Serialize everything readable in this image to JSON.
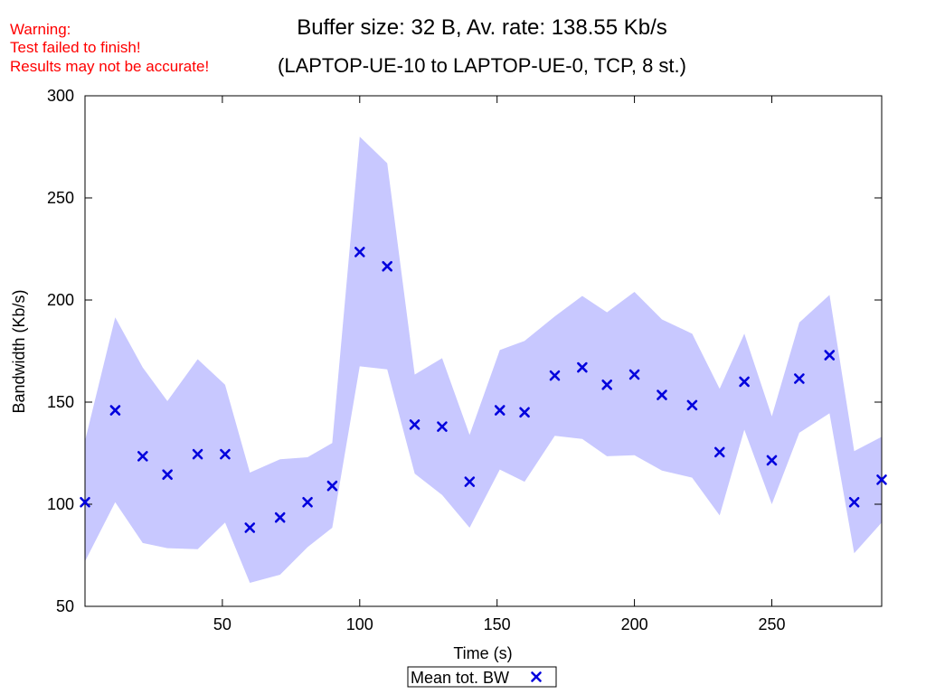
{
  "warning": {
    "lines": [
      "Warning:",
      "Test failed to finish!",
      "Results may not be accurate!"
    ],
    "color": "#ff0000"
  },
  "chart_data": {
    "type": "scatter",
    "title": "Buffer size: 32 B, Av. rate: 138.55 Kb/s",
    "subtitle": "(LAPTOP-UE-10 to LAPTOP-UE-0, TCP, 8 st.)",
    "xlabel": "Time (s)",
    "ylabel": "Bandwidth (Kb/s)",
    "xlim": [
      0,
      290
    ],
    "ylim": [
      50,
      300
    ],
    "xticks": [
      50,
      100,
      150,
      200,
      250
    ],
    "yticks": [
      50,
      100,
      150,
      200,
      250,
      300
    ],
    "grid": false,
    "legend_position": "bottom-center",
    "colors": {
      "points": "#0000dd",
      "band": "#c8c8ff"
    },
    "series": [
      {
        "name": "Mean tot. BW",
        "x": [
          0,
          11,
          21,
          30,
          41,
          51,
          60,
          71,
          81,
          90,
          100,
          110,
          120,
          130,
          140,
          151,
          160,
          171,
          181,
          190,
          200,
          210,
          221,
          231,
          240,
          250,
          260,
          271,
          280,
          290
        ],
        "y": [
          101,
          146,
          123.5,
          114.5,
          124.5,
          124.5,
          88.5,
          93.5,
          101,
          109,
          223.5,
          216.5,
          139,
          138,
          111,
          146,
          145,
          163,
          167,
          158.5,
          163.5,
          153.5,
          148.5,
          125.5,
          160,
          121.5,
          161.5,
          173,
          101,
          112
        ],
        "lower": [
          72,
          101,
          81,
          78.5,
          78,
          91,
          61.5,
          65.5,
          79,
          88.5,
          167.5,
          166,
          115,
          104.5,
          88.5,
          117,
          111,
          133.5,
          132,
          123.5,
          124,
          116.5,
          113,
          94.5,
          136.5,
          100,
          135,
          144.5,
          76,
          91
        ],
        "upper": [
          131,
          191.5,
          167,
          150.5,
          171,
          158.5,
          115.5,
          122,
          123,
          130,
          280,
          267,
          163.5,
          171.5,
          134,
          175.5,
          180,
          192,
          202,
          194,
          204,
          190.5,
          183.5,
          156.5,
          183.5,
          143,
          189,
          202.5,
          126,
          133
        ]
      }
    ]
  }
}
